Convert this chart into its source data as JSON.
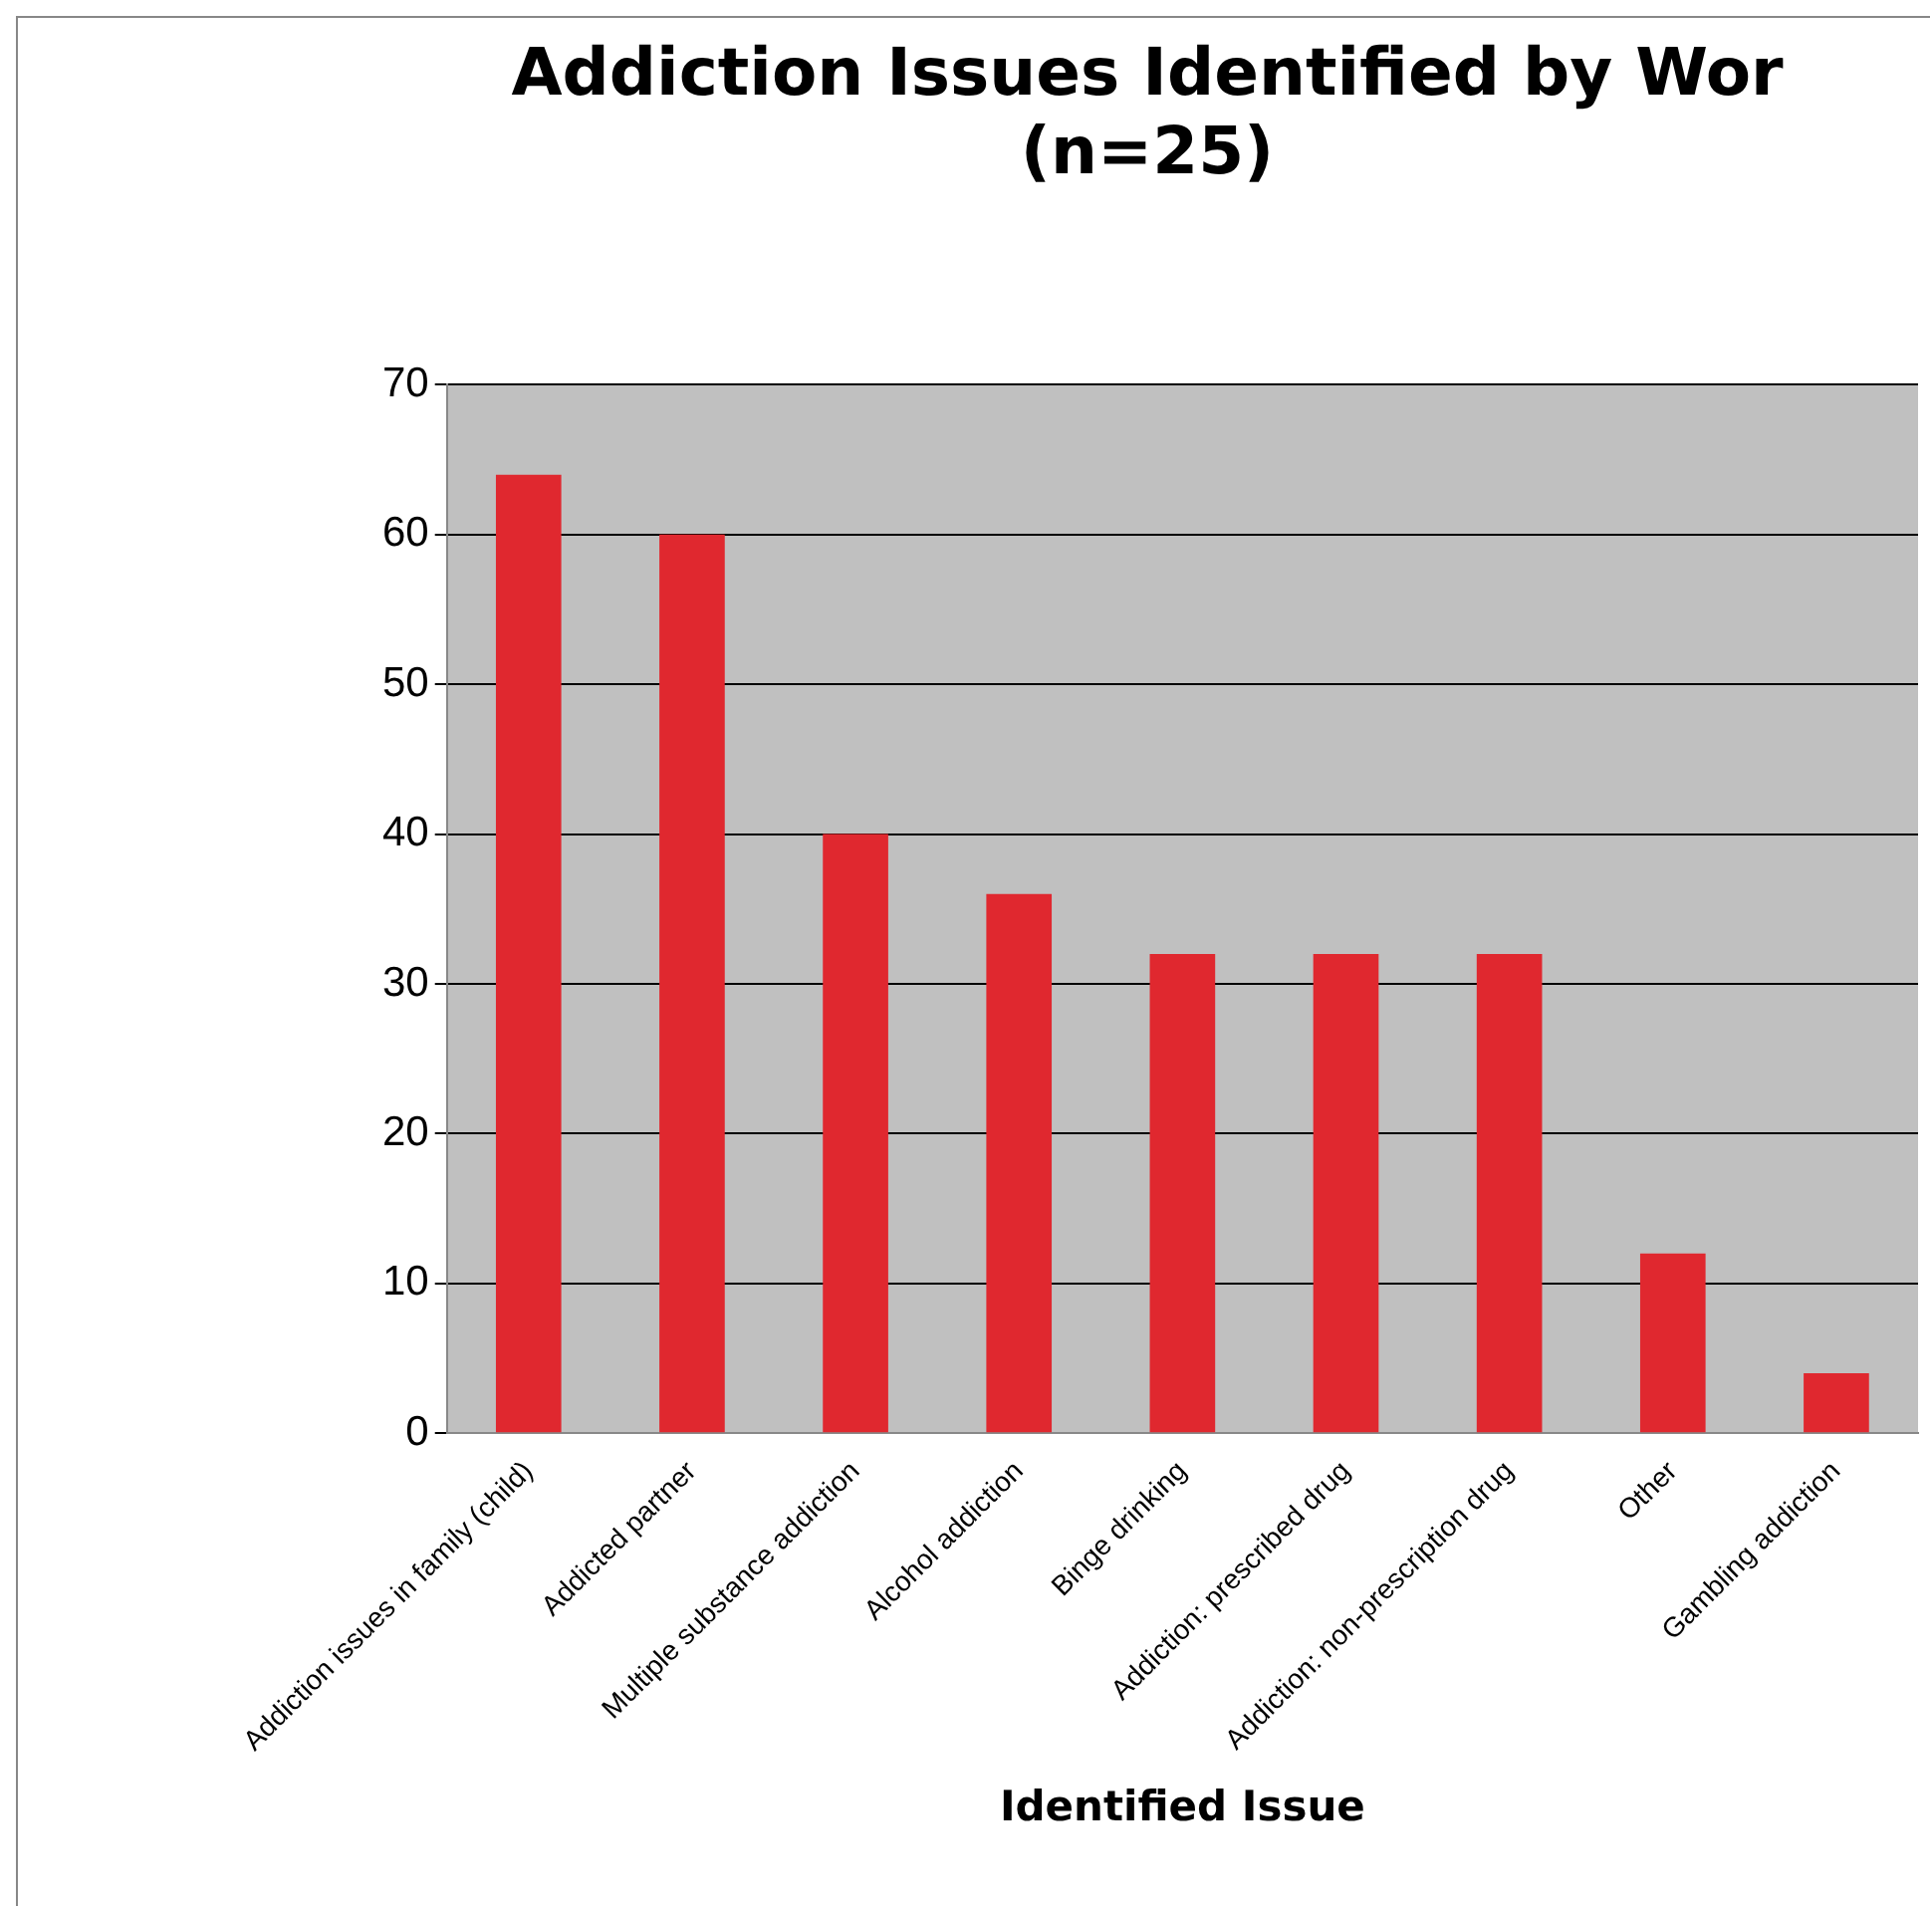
{
  "chart_data": {
    "type": "bar",
    "title": [
      "Addiction Issues Identified by Wor",
      "(n=25)"
    ],
    "xlabel": "Identified Issue",
    "categories": [
      "Addiction issues in family (child)",
      "Addicted partner",
      "Multiple substance addiction",
      "Alcohol addiction",
      "Binge drinking",
      "Addiction: prescribed drug",
      "Addiction: non-prescription drug",
      "Other",
      "Gambling addiction"
    ],
    "values": [
      64,
      60,
      40,
      36,
      32,
      32,
      32,
      12,
      4
    ],
    "color": "#e0282f",
    "ylim": [
      0,
      70
    ],
    "yticks": [
      0,
      10,
      20,
      30,
      40,
      50,
      60,
      70
    ],
    "grid": "y",
    "legend": false
  }
}
